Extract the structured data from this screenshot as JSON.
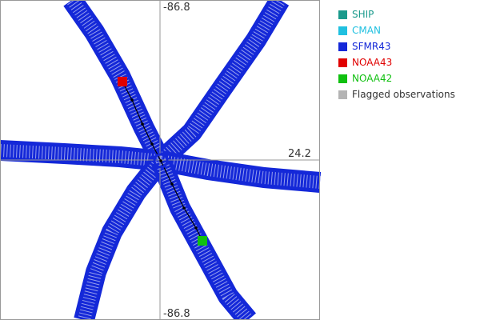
{
  "chart_data": {
    "type": "scatter",
    "title": "",
    "xlabel": "",
    "ylabel": "",
    "axis_labels": {
      "top": "-86.8",
      "bottom": "-86.8",
      "right": "24.2"
    },
    "legend": [
      {
        "key": "ship",
        "label": "SHIP",
        "color": "#1a9a8c"
      },
      {
        "key": "cman",
        "label": "CMAN",
        "color": "#20c0e0"
      },
      {
        "key": "sfmr43",
        "label": "SFMR43",
        "color": "#1428d8"
      },
      {
        "key": "noaa43",
        "label": "NOAA43",
        "color": "#e00000"
      },
      {
        "key": "noaa42",
        "label": "NOAA42",
        "color": "#10c010"
      },
      {
        "key": "flagged",
        "label": "Flagged observations",
        "color": "#b4b4b4"
      }
    ],
    "grid": true,
    "legend_position": "right"
  }
}
